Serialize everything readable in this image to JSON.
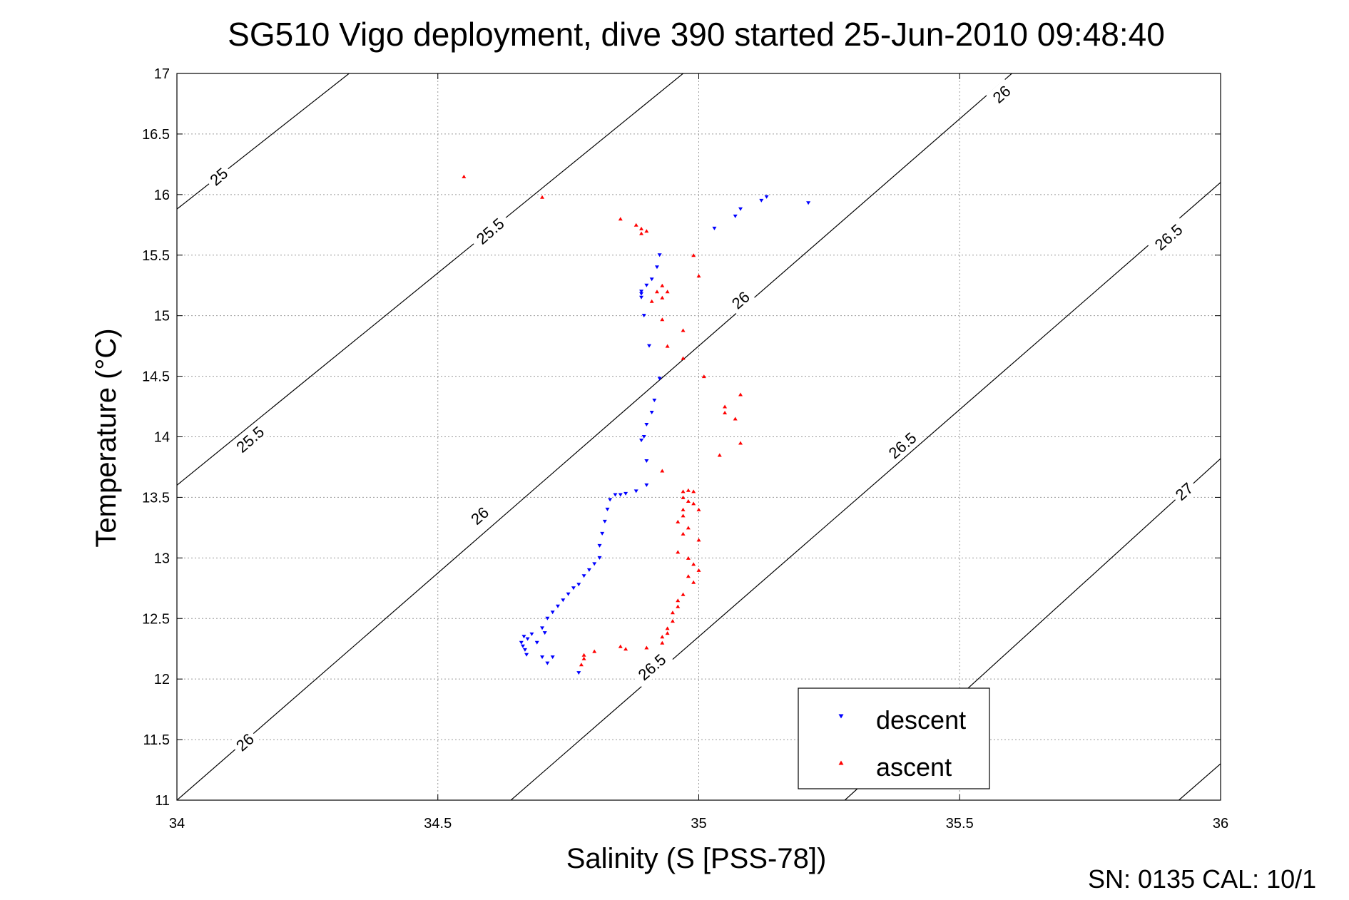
{
  "chart_data": {
    "type": "scatter",
    "title": "SG510 Vigo deployment, dive 390 started 25-Jun-2010 09:48:40",
    "xlabel": "Salinity (S [PSS-78])",
    "ylabel": "Temperature (°C)",
    "xlim": [
      34,
      36
    ],
    "ylim": [
      11,
      17
    ],
    "xticks": [
      "34",
      "34.5",
      "35",
      "35.5",
      "36"
    ],
    "yticks": [
      "11",
      "11.5",
      "12",
      "12.5",
      "13",
      "13.5",
      "14",
      "14.5",
      "15",
      "15.5",
      "16",
      "16.5",
      "17"
    ],
    "grid": true,
    "legend_position": "bottom-right",
    "colors": {
      "descent": "#0000ff",
      "ascent": "#ff0000",
      "contour": "#000000"
    },
    "series": [
      {
        "name": "descent",
        "marker": "triangle-down",
        "color": "#0000ff",
        "points": [
          [
            34.66,
            12.3
          ],
          [
            34.663,
            12.27
          ],
          [
            34.667,
            12.24
          ],
          [
            34.665,
            12.35
          ],
          [
            34.672,
            12.33
          ],
          [
            34.68,
            12.37
          ],
          [
            34.69,
            12.3
          ],
          [
            34.7,
            12.42
          ],
          [
            34.705,
            12.38
          ],
          [
            34.71,
            12.5
          ],
          [
            34.72,
            12.55
          ],
          [
            34.73,
            12.6
          ],
          [
            34.74,
            12.65
          ],
          [
            34.75,
            12.7
          ],
          [
            34.76,
            12.75
          ],
          [
            34.77,
            12.78
          ],
          [
            34.78,
            12.85
          ],
          [
            34.79,
            12.9
          ],
          [
            34.8,
            12.95
          ],
          [
            34.81,
            13.0
          ],
          [
            34.81,
            13.1
          ],
          [
            34.815,
            13.2
          ],
          [
            34.82,
            13.3
          ],
          [
            34.825,
            13.4
          ],
          [
            34.83,
            13.48
          ],
          [
            34.84,
            13.52
          ],
          [
            34.85,
            13.52
          ],
          [
            34.86,
            13.53
          ],
          [
            34.88,
            13.55
          ],
          [
            34.9,
            13.6
          ],
          [
            34.9,
            13.8
          ],
          [
            34.89,
            13.97
          ],
          [
            34.895,
            14.0
          ],
          [
            34.9,
            14.1
          ],
          [
            34.91,
            14.2
          ],
          [
            34.915,
            14.3
          ],
          [
            34.925,
            14.48
          ],
          [
            34.905,
            14.75
          ],
          [
            34.895,
            15.0
          ],
          [
            34.89,
            15.15
          ],
          [
            34.89,
            15.18
          ],
          [
            34.9,
            15.25
          ],
          [
            34.91,
            15.3
          ],
          [
            34.92,
            15.4
          ],
          [
            34.925,
            15.5
          ],
          [
            34.89,
            15.2
          ],
          [
            35.03,
            15.72
          ],
          [
            35.07,
            15.82
          ],
          [
            35.08,
            15.88
          ],
          [
            35.12,
            15.95
          ],
          [
            35.13,
            15.98
          ],
          [
            35.21,
            15.93
          ],
          [
            34.67,
            12.2
          ],
          [
            34.7,
            12.18
          ],
          [
            34.71,
            12.13
          ],
          [
            34.72,
            12.18
          ],
          [
            34.77,
            12.05
          ]
        ]
      },
      {
        "name": "ascent",
        "marker": "triangle-up",
        "color": "#ff0000",
        "points": [
          [
            34.55,
            16.15
          ],
          [
            34.7,
            15.98
          ],
          [
            34.85,
            15.8
          ],
          [
            34.88,
            15.75
          ],
          [
            34.89,
            15.72
          ],
          [
            34.89,
            15.68
          ],
          [
            34.9,
            15.7
          ],
          [
            34.99,
            15.5
          ],
          [
            35.0,
            15.33
          ],
          [
            34.93,
            15.25
          ],
          [
            34.92,
            15.2
          ],
          [
            34.94,
            15.2
          ],
          [
            34.91,
            15.12
          ],
          [
            34.93,
            15.15
          ],
          [
            34.93,
            14.97
          ],
          [
            34.97,
            14.88
          ],
          [
            34.94,
            14.75
          ],
          [
            34.97,
            14.65
          ],
          [
            35.01,
            14.5
          ],
          [
            35.05,
            14.25
          ],
          [
            35.05,
            14.2
          ],
          [
            35.08,
            14.35
          ],
          [
            35.07,
            14.15
          ],
          [
            35.08,
            13.95
          ],
          [
            35.04,
            13.85
          ],
          [
            34.93,
            13.72
          ],
          [
            34.97,
            13.55
          ],
          [
            34.98,
            13.56
          ],
          [
            34.99,
            13.55
          ],
          [
            34.97,
            13.5
          ],
          [
            34.98,
            13.47
          ],
          [
            34.99,
            13.45
          ],
          [
            34.97,
            13.4
          ],
          [
            35.0,
            13.4
          ],
          [
            34.97,
            13.35
          ],
          [
            34.96,
            13.3
          ],
          [
            34.98,
            13.25
          ],
          [
            34.97,
            13.2
          ],
          [
            35.0,
            13.15
          ],
          [
            34.96,
            13.05
          ],
          [
            34.98,
            13.0
          ],
          [
            34.99,
            12.95
          ],
          [
            35.0,
            12.9
          ],
          [
            34.98,
            12.85
          ],
          [
            34.99,
            12.8
          ],
          [
            34.97,
            12.7
          ],
          [
            34.96,
            12.65
          ],
          [
            34.96,
            12.6
          ],
          [
            34.95,
            12.55
          ],
          [
            34.95,
            12.48
          ],
          [
            34.94,
            12.42
          ],
          [
            34.94,
            12.38
          ],
          [
            34.93,
            12.35
          ],
          [
            34.93,
            12.3
          ],
          [
            34.9,
            12.26
          ],
          [
            34.86,
            12.25
          ],
          [
            34.85,
            12.27
          ],
          [
            34.8,
            12.23
          ],
          [
            34.78,
            12.2
          ],
          [
            34.78,
            12.17
          ],
          [
            34.775,
            12.12
          ]
        ]
      }
    ],
    "contours": [
      {
        "label": "25",
        "points": [
          [
            34,
            15.88
          ],
          [
            34.33,
            17
          ]
        ]
      },
      {
        "label": "25.5",
        "points": [
          [
            34,
            13.6
          ],
          [
            34.97,
            17
          ]
        ]
      },
      {
        "label": "26",
        "points": [
          [
            34,
            11.0
          ],
          [
            35.6,
            17
          ]
        ]
      },
      {
        "label": "26.5",
        "points": [
          [
            34.64,
            11.0
          ],
          [
            36,
            16.1
          ]
        ]
      },
      {
        "label": "27",
        "points": [
          [
            35.28,
            11.0
          ],
          [
            36,
            13.82
          ]
        ]
      },
      {
        "label": "",
        "points": [
          [
            35.92,
            11.0
          ],
          [
            36,
            11.3
          ]
        ]
      }
    ],
    "contour_labels": [
      {
        "text": "25",
        "x": 34.08,
        "y": 16.15
      },
      {
        "text": "25.5",
        "x": 34.6,
        "y": 15.7
      },
      {
        "text": "26",
        "x": 35.58,
        "y": 16.83
      },
      {
        "text": "25.5",
        "x": 34.14,
        "y": 13.98
      },
      {
        "text": "26",
        "x": 35.08,
        "y": 15.13
      },
      {
        "text": "26.5",
        "x": 35.9,
        "y": 15.65
      },
      {
        "text": "26",
        "x": 34.58,
        "y": 13.35
      },
      {
        "text": "26.5",
        "x": 35.39,
        "y": 13.93
      },
      {
        "text": "27",
        "x": 35.93,
        "y": 13.55
      },
      {
        "text": "26",
        "x": 34.13,
        "y": 11.48
      },
      {
        "text": "26.5",
        "x": 34.91,
        "y": 12.1
      }
    ]
  },
  "footer": {
    "text": "SN: 0135  CAL: 10/1"
  }
}
